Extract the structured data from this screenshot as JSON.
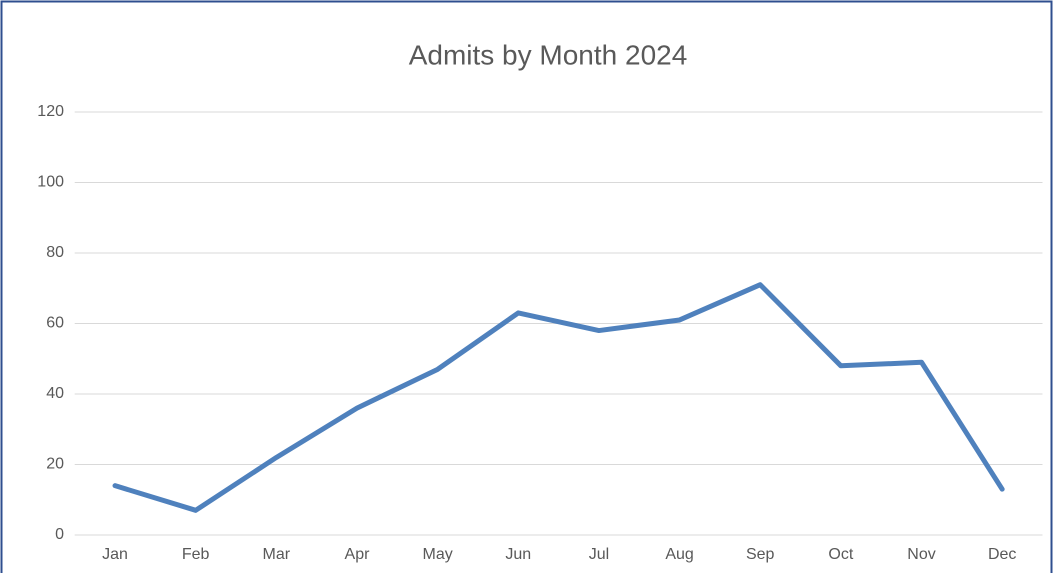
{
  "chart_data": {
    "type": "line",
    "title": "Admits by Month 2024",
    "categories": [
      "Jan",
      "Feb",
      "Mar",
      "Apr",
      "May",
      "Jun",
      "Jul",
      "Aug",
      "Sep",
      "Oct",
      "Nov",
      "Dec"
    ],
    "series": [
      {
        "name": "Admits",
        "color": "#4f81bd",
        "values": [
          14,
          7,
          22,
          36,
          47,
          63,
          58,
          61,
          71,
          48,
          49,
          13
        ]
      }
    ],
    "ylim": [
      0,
      120
    ],
    "yticks": [
      0,
      20,
      40,
      60,
      80,
      100,
      120
    ],
    "grid": true,
    "legend": false
  }
}
